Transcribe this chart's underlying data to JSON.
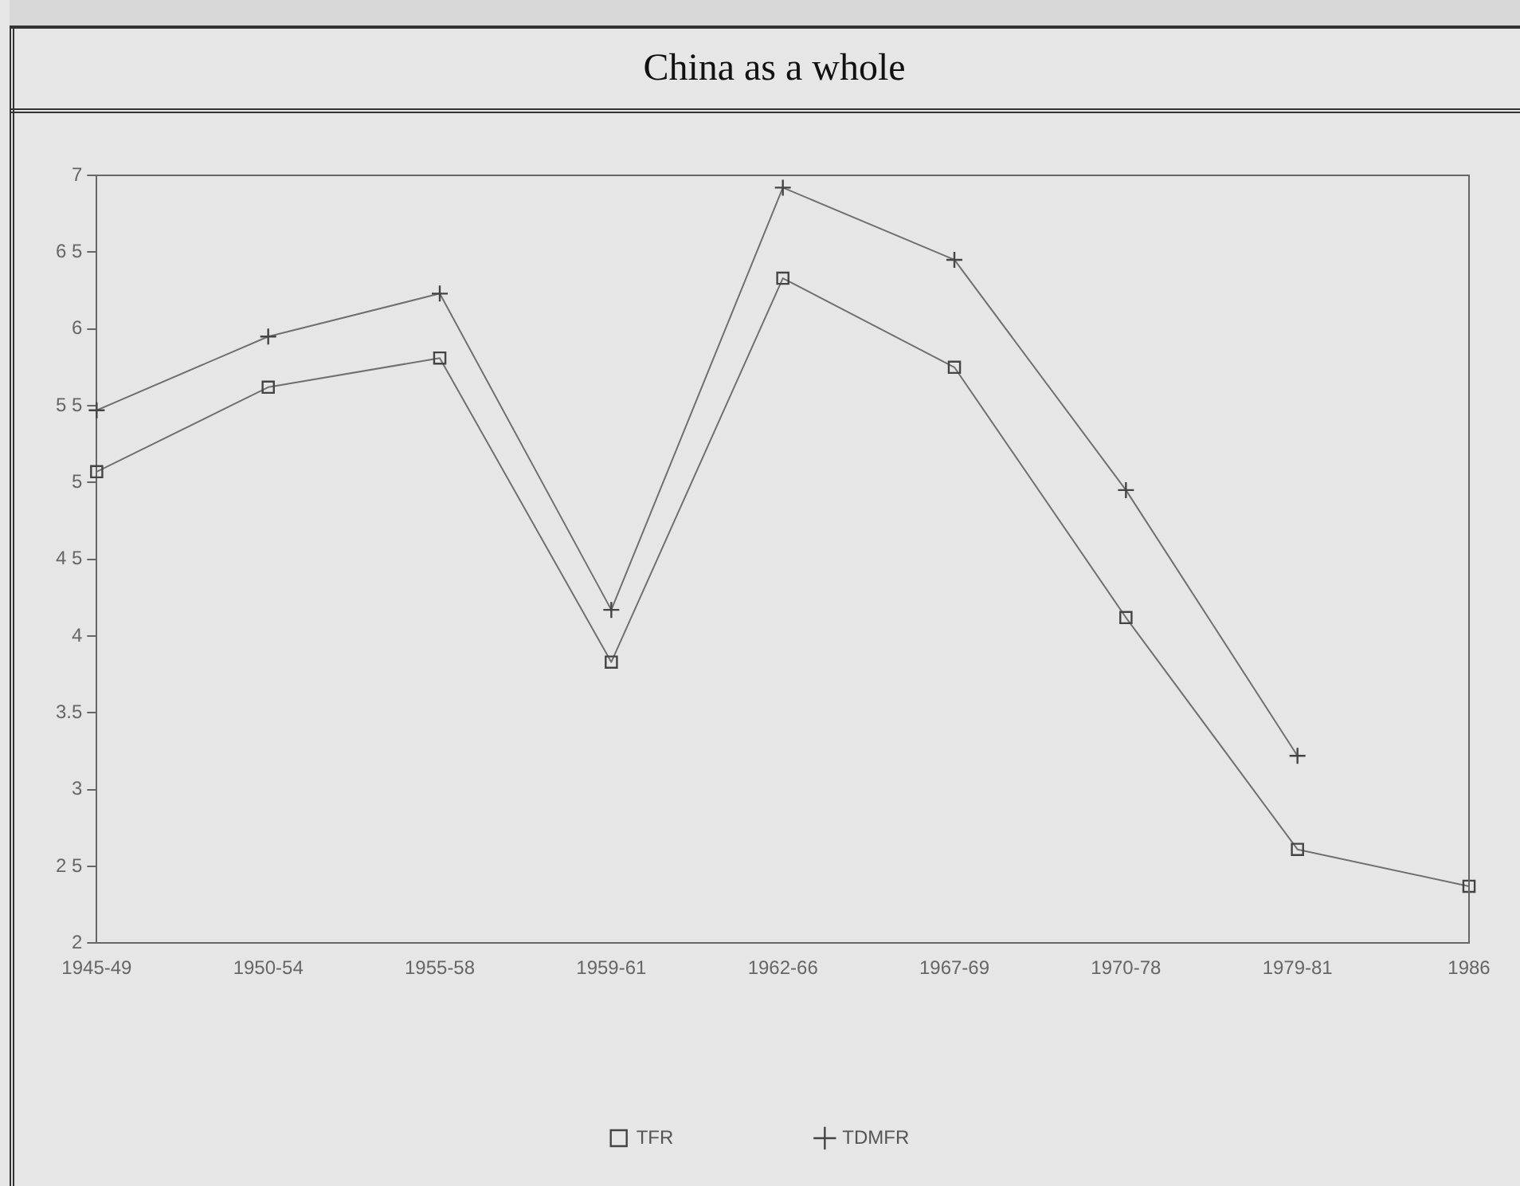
{
  "chart_data": {
    "type": "line",
    "title": "China as a whole",
    "categories": [
      "1945-49",
      "1950-54",
      "1955-58",
      "1959-61",
      "1962-66",
      "1967-69",
      "1970-78",
      "1979-81",
      "1986"
    ],
    "series": [
      {
        "name": "TFR",
        "color": "#707070",
        "marker": "square",
        "values": [
          5.07,
          5.62,
          5.81,
          3.83,
          6.33,
          5.75,
          4.12,
          2.61,
          2.37
        ]
      },
      {
        "name": "TDMFR",
        "color": "#707070",
        "marker": "cross",
        "values": [
          5.47,
          5.95,
          6.23,
          4.17,
          6.92,
          6.45,
          4.95,
          3.22,
          null
        ]
      }
    ],
    "ylim": [
      2,
      7
    ],
    "yticks": [
      2,
      {
        "value": 2.5,
        "label": "2 5"
      },
      3,
      {
        "value": 3.5,
        "label": "3.5"
      },
      4,
      {
        "value": 4.5,
        "label": "4 5"
      },
      5,
      {
        "value": 5.5,
        "label": "5 5"
      },
      6,
      {
        "value": 6.5,
        "label": "6 5"
      },
      7
    ],
    "grid": false,
    "legend": "bottom",
    "line_style": "solid"
  }
}
